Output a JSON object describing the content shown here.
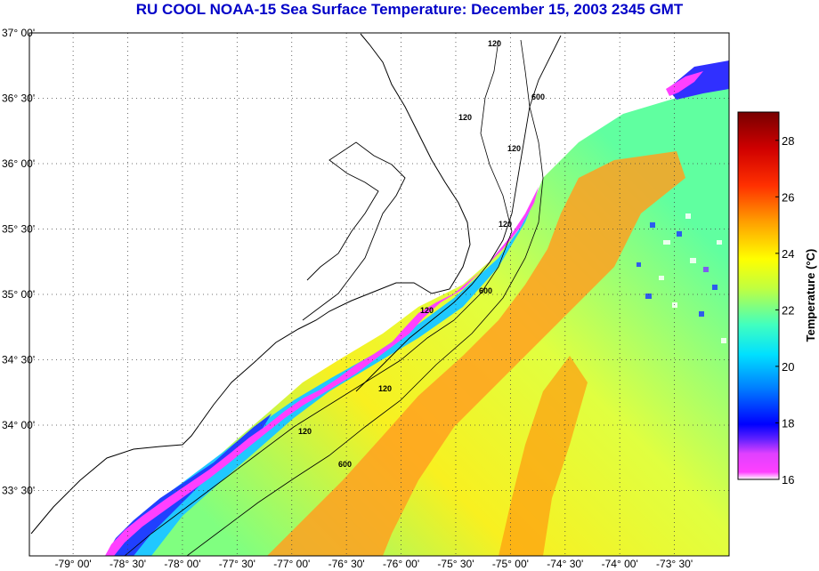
{
  "title": "RU COOL  NOAA-15  Sea Surface Temperature:  December 15, 2003 2345 GMT",
  "map": {
    "lon_range": [
      -79.4,
      -73.0
    ],
    "lat_range": [
      33.0,
      37.0
    ],
    "lon_ticks": [
      {
        "value": -79.0,
        "label": "-79° 00'"
      },
      {
        "value": -78.5,
        "label": "-78° 30'"
      },
      {
        "value": -78.0,
        "label": "-78° 00'"
      },
      {
        "value": -77.5,
        "label": "-77° 30'"
      },
      {
        "value": -77.0,
        "label": "-77° 00'"
      },
      {
        "value": -76.5,
        "label": "-76° 30'"
      },
      {
        "value": -76.0,
        "label": "-76° 00'"
      },
      {
        "value": -75.5,
        "label": "-75° 30'"
      },
      {
        "value": -75.0,
        "label": "-75° 00'"
      },
      {
        "value": -74.5,
        "label": "-74° 30'"
      },
      {
        "value": -74.0,
        "label": "-74° 00'"
      },
      {
        "value": -73.5,
        "label": "-73° 30'"
      }
    ],
    "lat_ticks": [
      {
        "value": 37.0,
        "label": "37° 00'"
      },
      {
        "value": 36.5,
        "label": "36° 30'"
      },
      {
        "value": 36.0,
        "label": "36° 00'"
      },
      {
        "value": 35.5,
        "label": "35° 30'"
      },
      {
        "value": 35.0,
        "label": "35° 00'"
      },
      {
        "value": 34.5,
        "label": "34° 30'"
      },
      {
        "value": 34.0,
        "label": "34° 00'"
      },
      {
        "value": 33.5,
        "label": "33° 30'"
      }
    ],
    "isobath_labels": [
      "120",
      "120",
      "120",
      "120",
      "120",
      "120",
      "120",
      "600",
      "600",
      "600"
    ],
    "grid": true
  },
  "colorbar": {
    "title": "Temperature (°C)",
    "range": [
      16,
      29
    ],
    "ticks": [
      "28",
      "26",
      "24",
      "22",
      "20",
      "18",
      "16"
    ],
    "colors": [
      "#ffffff",
      "#ff3cff",
      "#c040ff",
      "#2020ff",
      "#00b4ff",
      "#00ffff",
      "#80ff80",
      "#ffff00",
      "#ffa000",
      "#ff4000",
      "#ff0000",
      "#b40000",
      "#780000"
    ]
  }
}
